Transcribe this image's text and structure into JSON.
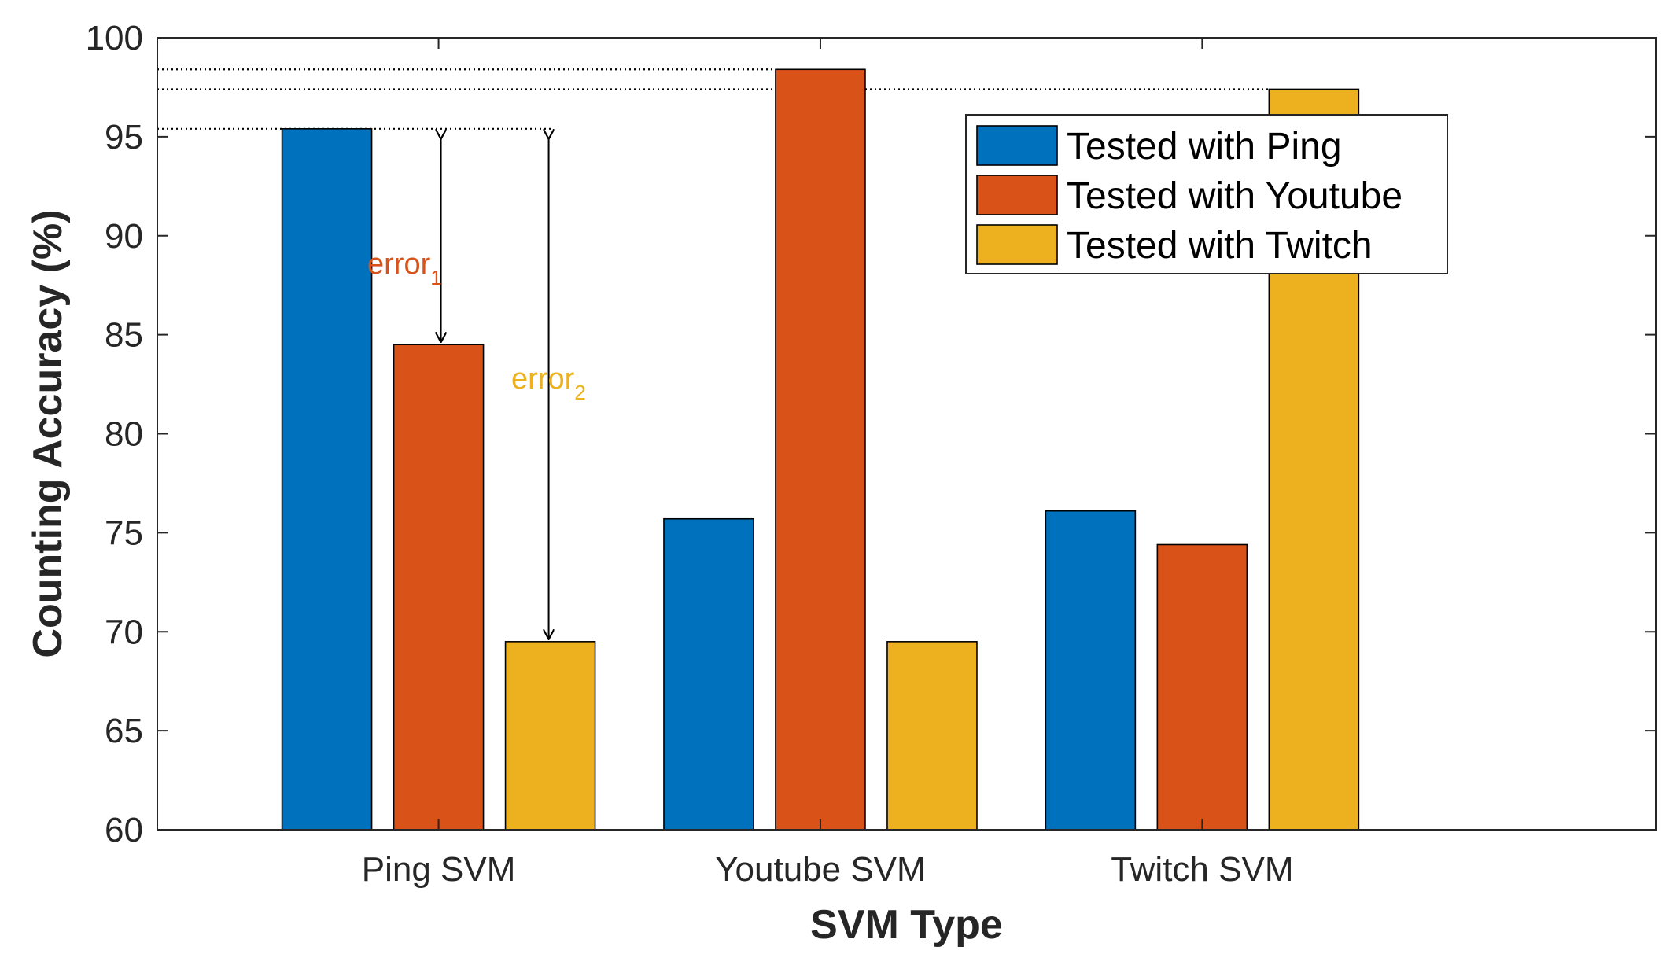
{
  "chart_data": {
    "type": "bar",
    "categories": [
      "Ping SVM",
      "Youtube SVM",
      "Twitch SVM"
    ],
    "series": [
      {
        "name": "Tested with Ping",
        "color": "#0072BD",
        "values": [
          95.4,
          75.7,
          76.1
        ]
      },
      {
        "name": "Tested with Youtube",
        "color": "#D95319",
        "values": [
          84.5,
          98.4,
          74.4
        ]
      },
      {
        "name": "Tested with Twitch",
        "color": "#EDB120",
        "values": [
          69.5,
          69.5,
          97.4
        ]
      }
    ],
    "xlabel": "SVM Type",
    "ylabel": "Counting Accuracy (%)",
    "ylim": [
      60,
      100
    ],
    "yticks": [
      60,
      65,
      70,
      75,
      80,
      85,
      90,
      95,
      100
    ],
    "legend_position": "top-right",
    "annotations": [
      {
        "text": "error",
        "subscript": "1",
        "color": "#D95319",
        "from": 95.4,
        "to": 84.5
      },
      {
        "text": "error",
        "subscript": "2",
        "color": "#EDB120",
        "from": 95.4,
        "to": 69.5
      }
    ],
    "reference_lines": [
      95.4,
      98.4,
      97.4
    ]
  }
}
